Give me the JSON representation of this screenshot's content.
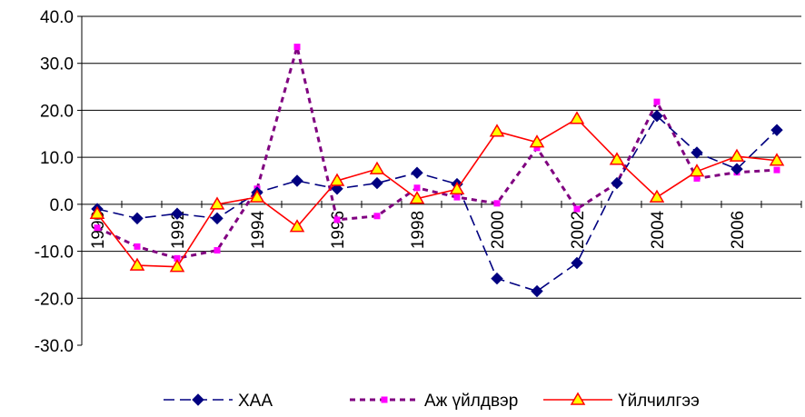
{
  "chart_data": {
    "type": "line",
    "title": "",
    "xlabel": "",
    "ylabel": "",
    "x": [
      1990,
      1991,
      1992,
      1993,
      1994,
      1995,
      1996,
      1997,
      1998,
      1999,
      2000,
      2001,
      2002,
      2003,
      2004,
      2005,
      2006,
      2007
    ],
    "x_tick_labels": [
      "1990",
      "1992",
      "1994",
      "1996",
      "1998",
      "2000",
      "2002",
      "2004",
      "2006"
    ],
    "y_tick_labels": [
      "40.0",
      "30.0",
      "20.0",
      "10.0",
      "0.0",
      "-10.0",
      "-20.0",
      "-30.0"
    ],
    "y_ticks": [
      40,
      30,
      20,
      10,
      0,
      -10,
      -20,
      -30
    ],
    "ylim": [
      -30,
      40
    ],
    "grid": "horizontal",
    "legend_position": "bottom",
    "series": [
      {
        "name": "ХАА",
        "color": "#000080",
        "dash": "long-dash",
        "marker": "diamond",
        "values": [
          -1.0,
          -3.0,
          -2.0,
          -3.0,
          2.5,
          5.0,
          3.3,
          4.5,
          6.7,
          4.3,
          -15.8,
          -18.5,
          -12.5,
          4.5,
          18.8,
          11.0,
          7.5,
          15.8
        ]
      },
      {
        "name": "Аж  үйлдвэр",
        "color": "#800080",
        "marker_color": "#ff00ff",
        "dash": "short-dash",
        "marker": "square",
        "values": [
          -5.0,
          -9.0,
          -11.5,
          -9.8,
          3.3,
          33.5,
          -3.3,
          -2.5,
          3.5,
          1.5,
          0.2,
          12.0,
          -1.0,
          4.5,
          21.8,
          5.5,
          6.8,
          7.3
        ]
      },
      {
        "name": "Үйлчилгээ",
        "color": "#ff0000",
        "marker_color": "#ffff00",
        "dash": "solid",
        "marker": "triangle",
        "values": [
          -2.0,
          -13.0,
          -13.3,
          0.0,
          1.5,
          -4.8,
          5.0,
          7.5,
          1.2,
          3.2,
          15.5,
          13.2,
          18.2,
          9.5,
          1.5,
          7.0,
          10.2,
          9.3
        ]
      }
    ]
  }
}
